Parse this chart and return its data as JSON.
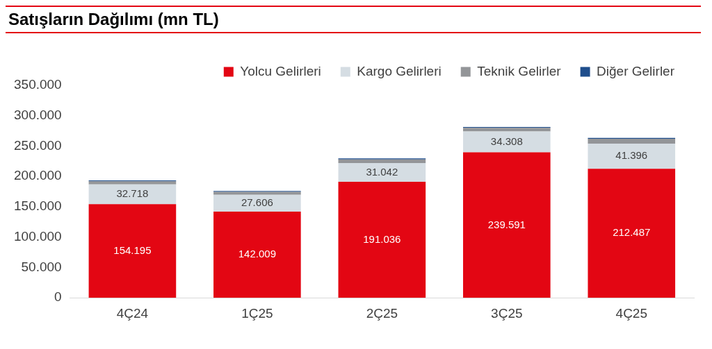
{
  "chart_data": {
    "type": "bar",
    "title": "Satışların Dağılımı (mn TL)",
    "stacked": true,
    "legend": "top",
    "grid": false,
    "categories": [
      "4Ç24",
      "1Ç25",
      "2Ç25",
      "3Ç25",
      "4Ç25"
    ],
    "ylim": [
      0,
      350000
    ],
    "yticks": [
      {
        "value": 0,
        "label": "0"
      },
      {
        "value": 50000,
        "label": "50.000"
      },
      {
        "value": 100000,
        "label": "100.000"
      },
      {
        "value": 150000,
        "label": "150.000"
      },
      {
        "value": 200000,
        "label": "200.000"
      },
      {
        "value": 250000,
        "label": "250.000"
      },
      {
        "value": 300000,
        "label": "300.000"
      },
      {
        "value": 350000,
        "label": "350.000"
      }
    ],
    "series": [
      {
        "name": "Yolcu Gelirleri",
        "color": "#e30613",
        "values": [
          154195,
          142009,
          191036,
          239591,
          212487
        ],
        "value_labels": [
          "154.195",
          "142.009",
          "191.036",
          "239.591",
          "212.487"
        ]
      },
      {
        "name": "Kargo Gelirleri",
        "color": "#d5dde3",
        "values": [
          32718,
          27606,
          31042,
          34308,
          41396
        ],
        "value_labels": [
          "32.718",
          "27.606",
          "31.042",
          "34.308",
          "41.396"
        ]
      },
      {
        "name": "Teknik Gelirler",
        "color": "#939598",
        "values": [
          5000,
          5000,
          6000,
          6000,
          8000
        ]
      },
      {
        "name": "Diğer Gelirler",
        "color": "#1f4e8c",
        "values": [
          1500,
          1500,
          1500,
          1500,
          1500
        ]
      }
    ]
  }
}
